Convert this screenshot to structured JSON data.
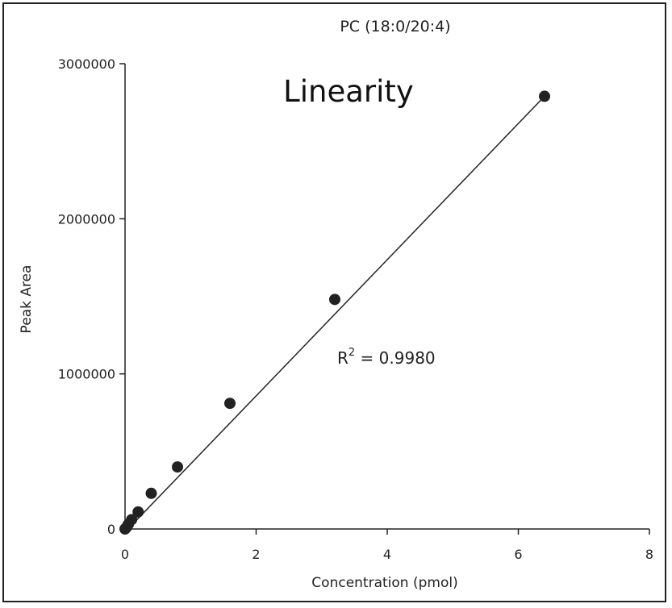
{
  "chart_data": {
    "type": "scatter",
    "title": "PC (18:0/20:4)",
    "annotation": "Linearity",
    "r2_label": "R",
    "r2_sup": "2",
    "r2_value": " = 0.9980",
    "xlabel": "Concentration (pmol)",
    "ylabel": "Peak Area",
    "xlim": [
      0,
      8
    ],
    "ylim": [
      0,
      3000000
    ],
    "xticks": [
      0,
      2,
      4,
      6,
      8
    ],
    "yticks": [
      0,
      1000000,
      2000000,
      3000000
    ],
    "xtick_labels": [
      "0",
      "2",
      "4",
      "6",
      "8"
    ],
    "ytick_labels": [
      "0",
      "1000000",
      "2000000",
      "3000000"
    ],
    "grid": false,
    "series": [
      {
        "points": [
          {
            "x": 0.0,
            "y": 0
          },
          {
            "x": 0.025,
            "y": 12000
          },
          {
            "x": 0.05,
            "y": 30000
          },
          {
            "x": 0.1,
            "y": 60000
          },
          {
            "x": 0.2,
            "y": 110000
          },
          {
            "x": 0.4,
            "y": 230000
          },
          {
            "x": 0.8,
            "y": 400000
          },
          {
            "x": 1.6,
            "y": 810000
          },
          {
            "x": 3.2,
            "y": 1480000
          },
          {
            "x": 6.4,
            "y": 2790000
          }
        ]
      }
    ],
    "fit_line": {
      "x": [
        0,
        6.4
      ],
      "y": [
        -20000,
        2790000
      ]
    },
    "colors": {
      "points": "#222222",
      "line": "#222222",
      "axis": "#222222"
    }
  }
}
